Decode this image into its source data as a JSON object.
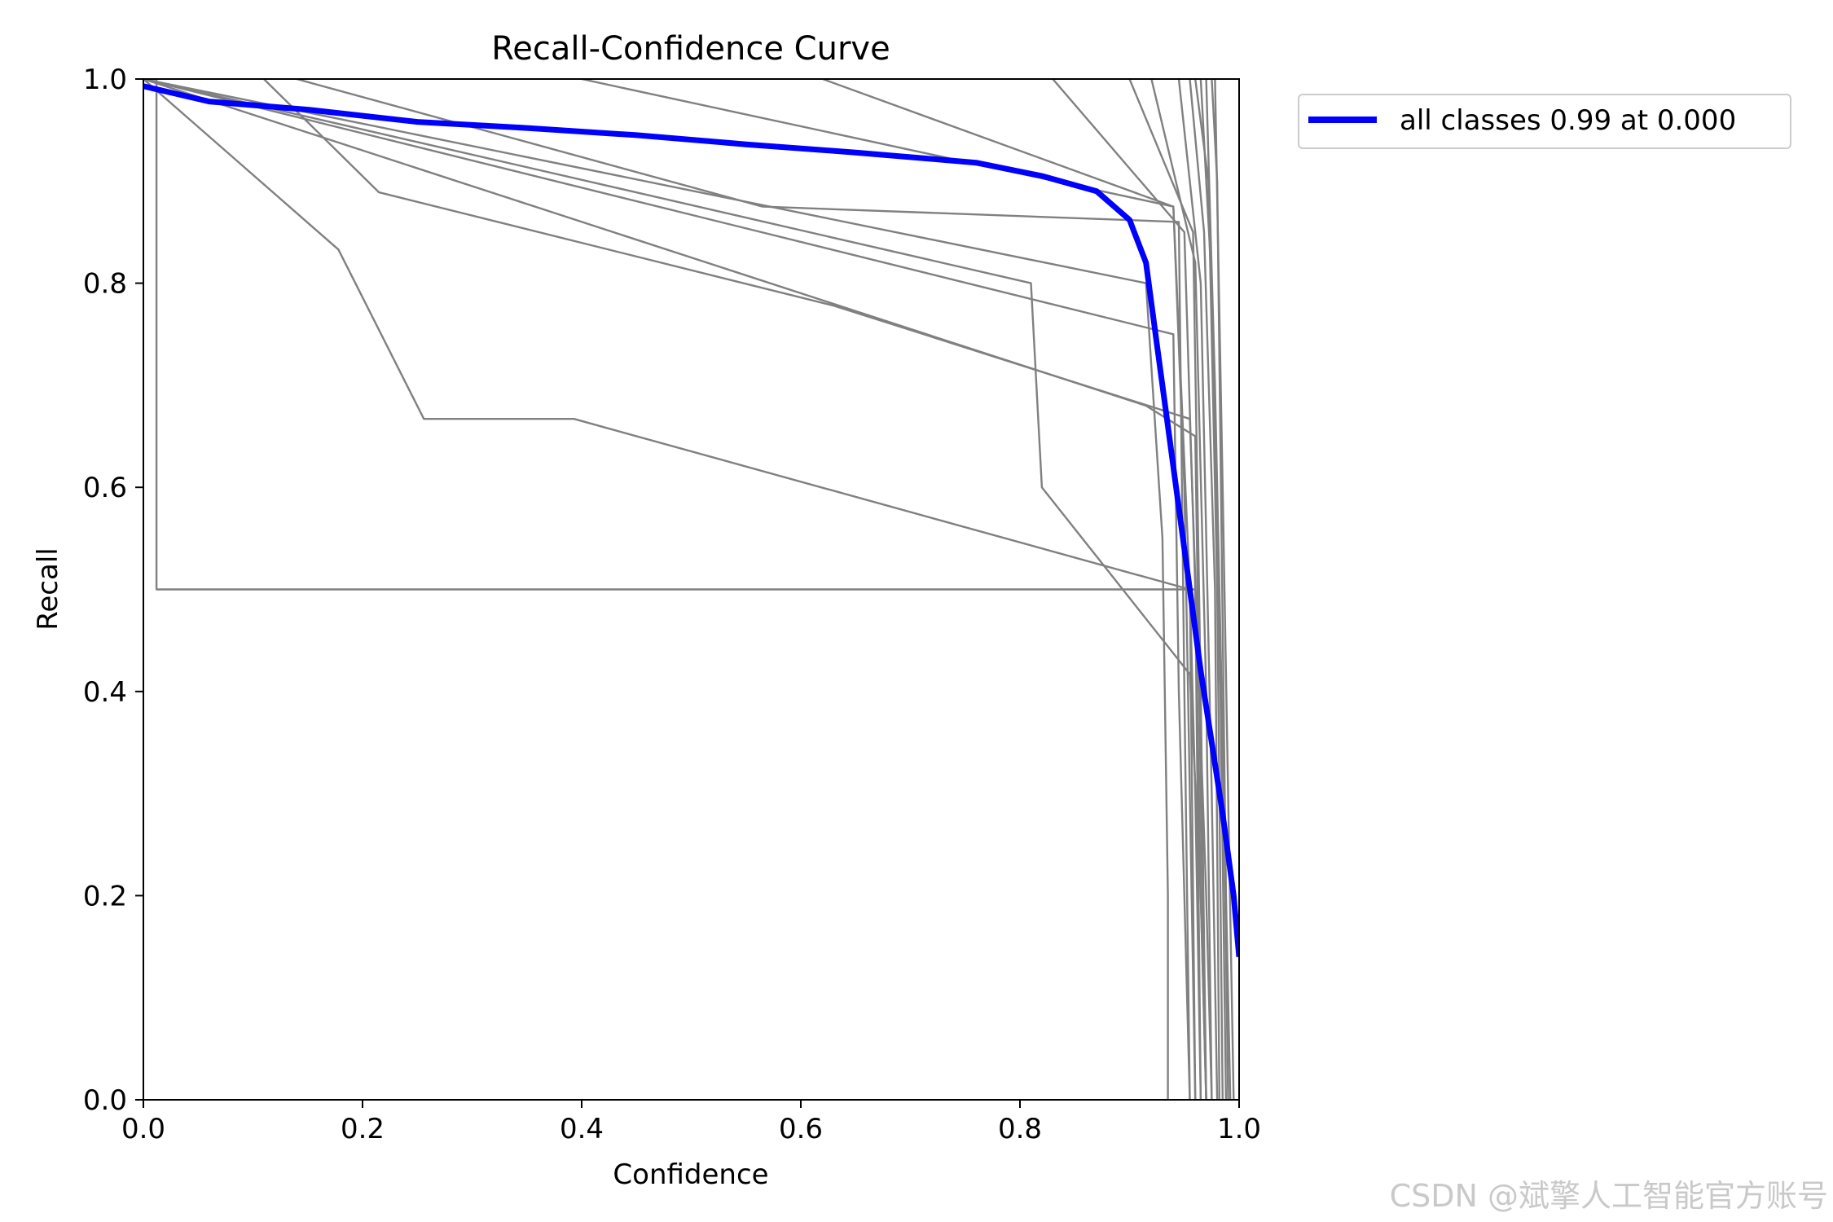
{
  "chart_data": {
    "type": "line",
    "title": "Recall-Confidence Curve",
    "xlabel": "Confidence",
    "ylabel": "Recall",
    "xlim": [
      0,
      1
    ],
    "ylim": [
      0,
      1
    ],
    "xticks": [
      "0.0",
      "0.2",
      "0.4",
      "0.6",
      "0.8",
      "1.0"
    ],
    "yticks": [
      "0.0",
      "0.2",
      "0.4",
      "0.6",
      "0.8",
      "1.0"
    ],
    "grid": false,
    "legend_position": "outside-top-right",
    "series": [
      {
        "name": "all classes 0.99 at 0.000",
        "color": "#0000ff",
        "x": [
          0.0,
          0.06,
          0.15,
          0.25,
          0.35,
          0.45,
          0.55,
          0.65,
          0.76,
          0.82,
          0.87,
          0.9,
          0.915,
          0.925,
          0.935,
          0.945,
          0.955,
          0.965,
          0.975,
          0.985,
          0.995,
          1.0
        ],
        "y": [
          0.993,
          0.978,
          0.97,
          0.958,
          0.952,
          0.945,
          0.936,
          0.928,
          0.918,
          0.905,
          0.89,
          0.862,
          0.82,
          0.74,
          0.66,
          0.58,
          0.5,
          0.42,
          0.35,
          0.28,
          0.2,
          0.14
        ]
      },
      {
        "color": "#808080",
        "x": [
          0.0,
          0.012,
          0.012,
          0.96,
          0.965,
          0.97
        ],
        "y": [
          1.0,
          1.0,
          0.5,
          0.5,
          0.2,
          0.0
        ]
      },
      {
        "color": "#808080",
        "x": [
          0.0,
          0.178,
          0.256,
          0.393,
          0.955,
          0.96,
          0.965
        ],
        "y": [
          1.0,
          0.833,
          0.667,
          0.667,
          0.5,
          0.3,
          0.0
        ]
      },
      {
        "color": "#808080",
        "x": [
          0.11,
          0.215,
          0.63,
          0.955,
          0.97,
          0.975
        ],
        "y": [
          1.0,
          0.889,
          0.778,
          0.667,
          0.2,
          0.0
        ]
      },
      {
        "color": "#808080",
        "x": [
          0.0,
          0.81,
          0.82,
          0.955,
          0.965,
          0.97
        ],
        "y": [
          1.0,
          0.8,
          0.6,
          0.417,
          0.2,
          0.0
        ]
      },
      {
        "color": "#808080",
        "x": [
          0.0,
          0.915,
          0.93,
          0.935,
          0.935
        ],
        "y": [
          1.0,
          0.8,
          0.55,
          0.2,
          0.0
        ]
      },
      {
        "color": "#808080",
        "x": [
          0.0,
          0.94,
          0.945,
          0.95,
          0.955
        ],
        "y": [
          1.0,
          0.75,
          0.4,
          0.2,
          0.0
        ]
      },
      {
        "color": "#808080",
        "x": [
          0.14,
          0.565,
          0.945,
          0.95,
          0.955
        ],
        "y": [
          1.0,
          0.875,
          0.86,
          0.4,
          0.0
        ]
      },
      {
        "color": "#808080",
        "x": [
          0.4,
          0.94,
          0.955,
          0.96
        ],
        "y": [
          1.0,
          0.875,
          0.5,
          0.0
        ]
      },
      {
        "color": "#808080",
        "x": [
          0.62,
          0.94,
          0.95,
          0.96
        ],
        "y": [
          1.0,
          0.875,
          0.6,
          0.0
        ]
      },
      {
        "color": "#808080",
        "x": [
          0.0,
          0.915,
          0.96,
          0.965,
          0.97
        ],
        "y": [
          1.0,
          0.68,
          0.65,
          0.3,
          0.0
        ]
      },
      {
        "color": "#808080",
        "x": [
          0.83,
          0.95,
          0.96,
          0.965
        ],
        "y": [
          1.0,
          0.85,
          0.5,
          0.0
        ]
      },
      {
        "color": "#808080",
        "x": [
          0.9,
          0.958,
          0.965,
          0.97
        ],
        "y": [
          1.0,
          0.85,
          0.4,
          0.0
        ]
      },
      {
        "color": "#808080",
        "x": [
          0.92,
          0.96,
          0.97,
          0.975
        ],
        "y": [
          1.0,
          0.82,
          0.4,
          0.0
        ]
      },
      {
        "color": "#808080",
        "x": [
          0.945,
          0.965,
          0.975,
          0.98
        ],
        "y": [
          1.0,
          0.8,
          0.3,
          0.0
        ]
      },
      {
        "color": "#808080",
        "x": [
          0.955,
          0.968,
          0.978,
          0.982
        ],
        "y": [
          1.0,
          0.85,
          0.5,
          0.0
        ]
      },
      {
        "color": "#808080",
        "x": [
          0.96,
          0.972,
          0.98,
          0.985
        ],
        "y": [
          1.0,
          0.9,
          0.5,
          0.0
        ]
      },
      {
        "color": "#808080",
        "x": [
          0.965,
          0.975,
          0.983,
          0.988
        ],
        "y": [
          1.0,
          0.8,
          0.4,
          0.0
        ]
      },
      {
        "color": "#808080",
        "x": [
          0.97,
          0.978,
          0.986,
          0.99
        ],
        "y": [
          1.0,
          0.7,
          0.3,
          0.0
        ]
      },
      {
        "color": "#808080",
        "x": [
          0.975,
          0.98,
          0.988,
          0.992
        ],
        "y": [
          1.0,
          0.9,
          0.2,
          0.0
        ]
      },
      {
        "color": "#808080",
        "x": [
          0.978,
          0.985,
          0.99,
          0.995
        ],
        "y": [
          1.0,
          0.6,
          0.3,
          0.0
        ]
      }
    ]
  },
  "watermark": "CSDN @斌擎人工智能官方账号"
}
